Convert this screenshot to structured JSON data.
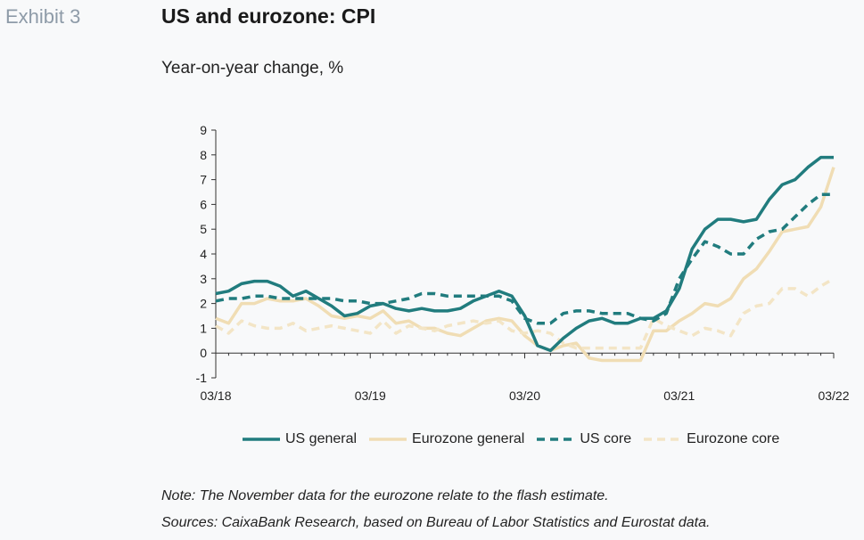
{
  "header": {
    "exhibit": "Exhibit 3",
    "title": "US and eurozone: CPI",
    "subtitle": "Year-on-year change, %"
  },
  "footer": {
    "note": "Note: The November data for the eurozone relate to the flash estimate.",
    "sources": "Sources: CaixaBank Research, based on Bureau of Labor Statistics and Eurostat data."
  },
  "chart_data": {
    "type": "line",
    "title": "US and eurozone: CPI",
    "ylabel": "Year-on-year change, %",
    "xlabel": "",
    "ylim": [
      -1,
      9
    ],
    "yticks": [
      "-1",
      "0",
      "1",
      "2",
      "3",
      "4",
      "5",
      "6",
      "7",
      "8",
      "9"
    ],
    "xlim": [
      0,
      48
    ],
    "xticks": [
      {
        "x": 0,
        "label": "03/18"
      },
      {
        "x": 12,
        "label": "03/19"
      },
      {
        "x": 24,
        "label": "03/20"
      },
      {
        "x": 36,
        "label": "03/21"
      },
      {
        "x": 48,
        "label": "03/22"
      }
    ],
    "grid": false,
    "legend_position": "bottom",
    "series": [
      {
        "name": "US general",
        "color": "#217c7e",
        "dash": "solid",
        "values": [
          2.4,
          2.5,
          2.8,
          2.9,
          2.9,
          2.7,
          2.3,
          2.5,
          2.2,
          1.9,
          1.5,
          1.6,
          1.9,
          2.0,
          1.8,
          1.7,
          1.8,
          1.7,
          1.7,
          1.8,
          2.1,
          2.3,
          2.5,
          2.3,
          1.5,
          0.3,
          0.1,
          0.6,
          1.0,
          1.3,
          1.4,
          1.2,
          1.2,
          1.4,
          1.4,
          1.7,
          2.6,
          4.2,
          5.0,
          5.4,
          5.4,
          5.3,
          5.4,
          6.2,
          6.8,
          7.0,
          7.5,
          7.9,
          7.9
        ]
      },
      {
        "name": "Eurozone general",
        "color": "#f0ddb4",
        "dash": "solid",
        "values": [
          1.4,
          1.2,
          2.0,
          2.0,
          2.2,
          2.1,
          2.1,
          2.2,
          1.9,
          1.5,
          1.4,
          1.5,
          1.4,
          1.7,
          1.2,
          1.3,
          1.0,
          1.0,
          0.8,
          0.7,
          1.0,
          1.3,
          1.4,
          1.3,
          0.7,
          0.3,
          0.1,
          0.3,
          0.4,
          -0.2,
          -0.3,
          -0.3,
          -0.3,
          -0.3,
          0.9,
          0.9,
          1.3,
          1.6,
          2.0,
          1.9,
          2.2,
          3.0,
          3.4,
          4.1,
          4.9,
          5.0,
          5.1,
          5.9,
          7.5
        ]
      },
      {
        "name": "US core",
        "color": "#217c7e",
        "dash": "dashed",
        "values": [
          2.1,
          2.2,
          2.2,
          2.3,
          2.3,
          2.2,
          2.2,
          2.2,
          2.2,
          2.2,
          2.1,
          2.1,
          2.0,
          2.0,
          2.1,
          2.2,
          2.4,
          2.4,
          2.3,
          2.3,
          2.3,
          2.3,
          2.3,
          2.1,
          1.4,
          1.2,
          1.2,
          1.6,
          1.7,
          1.7,
          1.6,
          1.6,
          1.6,
          1.4,
          1.3,
          1.6,
          3.0,
          3.8,
          4.5,
          4.3,
          4.0,
          4.0,
          4.6,
          4.9,
          5.0,
          5.5,
          6.0,
          6.4,
          6.4
        ]
      },
      {
        "name": "Eurozone core",
        "color": "#f3e5c6",
        "dash": "dashed",
        "values": [
          1.1,
          0.8,
          1.3,
          1.1,
          1.0,
          1.0,
          1.2,
          0.9,
          1.0,
          1.1,
          1.0,
          0.9,
          0.8,
          1.3,
          0.8,
          1.1,
          1.0,
          0.9,
          1.1,
          1.2,
          1.3,
          1.2,
          1.3,
          0.9,
          0.8,
          0.9,
          0.8,
          0.4,
          0.2,
          0.2,
          0.2,
          0.2,
          0.2,
          0.2,
          1.4,
          1.1,
          0.9,
          0.7,
          1.0,
          0.9,
          0.7,
          1.6,
          1.9,
          2.0,
          2.6,
          2.6,
          2.3,
          2.7,
          3.0
        ]
      }
    ]
  }
}
